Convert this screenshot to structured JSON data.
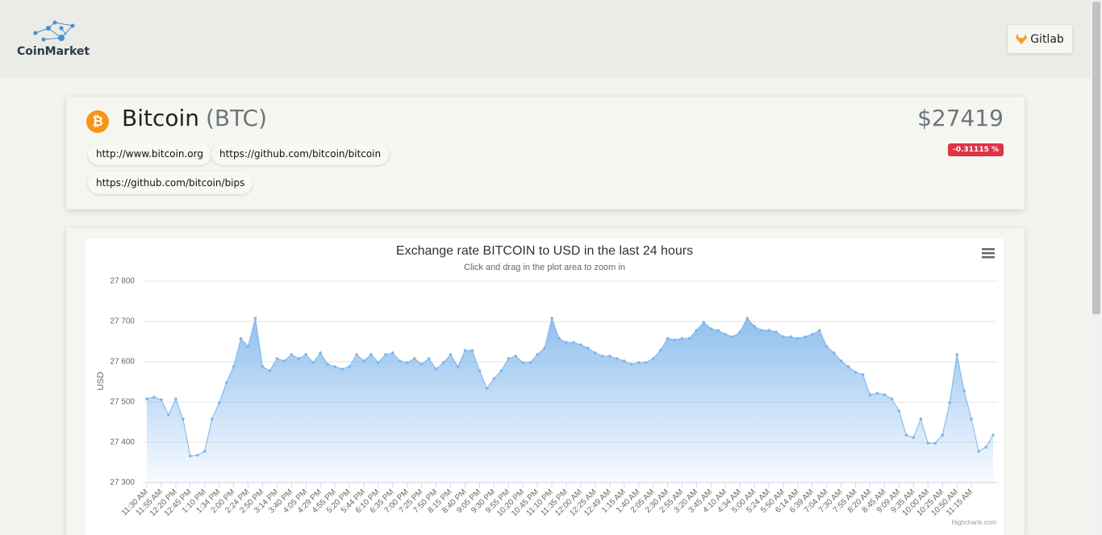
{
  "header": {
    "brand": "CoinMarket",
    "link": "Gitlab"
  },
  "coin": {
    "icon": "₿",
    "name": "Bitcoin",
    "symbol": "(BTC)",
    "price": "$27419",
    "change": "-0.31115 %",
    "links": [
      "http://www.bitcoin.org",
      "https://github.com/bitcoin/bitcoin",
      "https://github.com/bitcoin/bips"
    ]
  },
  "chart_data": {
    "type": "area",
    "title": "Exchange rate BITCOIN to USD in the last 24 hours",
    "subtitle": "Click and drag in the plot area to zoom in",
    "y_label": "USD",
    "credits": "Highcharts.com",
    "color": "#7cb5ec",
    "grid": true,
    "ylim": [
      27300,
      27800
    ],
    "yticks": [
      {
        "value": 27300,
        "label": "27 300"
      },
      {
        "value": 27400,
        "label": "27 400"
      },
      {
        "value": 27500,
        "label": "27 500"
      },
      {
        "value": 27600,
        "label": "27 600"
      },
      {
        "value": 27700,
        "label": "27 700"
      },
      {
        "value": 27800,
        "label": "27 800"
      }
    ],
    "categories": [
      "11:30 AM",
      null,
      "11:55 AM",
      null,
      "12:20 PM",
      null,
      "12:45 PM",
      null,
      "1:10 PM",
      null,
      "1:34 PM",
      null,
      "2:00 PM",
      null,
      "2:24 PM",
      null,
      "2:50 PM",
      null,
      "3:14 PM",
      null,
      "3:40 PM",
      null,
      "4:05 PM",
      null,
      "4:29 PM",
      null,
      "4:55 PM",
      null,
      "5:20 PM",
      null,
      "5:44 PM",
      null,
      "6:10 PM",
      null,
      "6:35 PM",
      null,
      "7:00 PM",
      null,
      "7:25 PM",
      null,
      "7:50 PM",
      null,
      "8:15 PM",
      null,
      "8:40 PM",
      null,
      "9:05 PM",
      null,
      "9:30 PM",
      null,
      "9:55 PM",
      null,
      "10:20 PM",
      null,
      "10:45 PM",
      null,
      "11:10 PM",
      null,
      "11:35 PM",
      null,
      "12:00 AM",
      null,
      "12:25 AM",
      null,
      "12:49 AM",
      null,
      "1:15 AM",
      null,
      "1:40 AM",
      null,
      "2:05 AM",
      null,
      "2:30 AM",
      null,
      "2:55 AM",
      null,
      "3:20 AM",
      null,
      "3:45 AM",
      null,
      "4:10 AM",
      null,
      "4:34 AM",
      null,
      "5:00 AM",
      null,
      "5:24 AM",
      null,
      "5:50 AM",
      null,
      "6:14 AM",
      null,
      "6:39 AM",
      null,
      "7:04 AM",
      null,
      "7:30 AM",
      null,
      "7:55 AM",
      null,
      "8:20 AM",
      null,
      "8:45 AM",
      null,
      "9:09 AM",
      null,
      "9:35 AM",
      null,
      "10:00 AM",
      null,
      "10:25 AM",
      null,
      "10:50 AM",
      null,
      "11:15 AM",
      null,
      null,
      null
    ],
    "values": [
      27508,
      27512,
      27506,
      27468,
      27508,
      27458,
      27366,
      27368,
      27378,
      27458,
      27498,
      27548,
      27588,
      27658,
      27638,
      27708,
      27588,
      27578,
      27608,
      27602,
      27618,
      27608,
      27618,
      27598,
      27622,
      27594,
      27588,
      27582,
      27588,
      27618,
      27602,
      27618,
      27598,
      27618,
      27622,
      27602,
      27598,
      27608,
      27594,
      27608,
      27582,
      27598,
      27618,
      27588,
      27628,
      27628,
      27578,
      27534,
      27558,
      27578,
      27608,
      27614,
      27598,
      27598,
      27618,
      27634,
      27708,
      27658,
      27648,
      27648,
      27642,
      27634,
      27622,
      27614,
      27614,
      27608,
      27602,
      27594,
      27598,
      27598,
      27608,
      27628,
      27658,
      27654,
      27658,
      27658,
      27678,
      27698,
      27682,
      27678,
      27668,
      27662,
      27674,
      27708,
      27688,
      27678,
      27678,
      27674,
      27662,
      27662,
      27658,
      27662,
      27668,
      27678,
      27638,
      27622,
      27602,
      27588,
      27574,
      27568,
      27518,
      27522,
      27518,
      27508,
      27478,
      27418,
      27412,
      27458,
      27398,
      27398,
      27418,
      27498,
      27618,
      27528,
      27458,
      27378,
      27388,
      27418
    ]
  }
}
